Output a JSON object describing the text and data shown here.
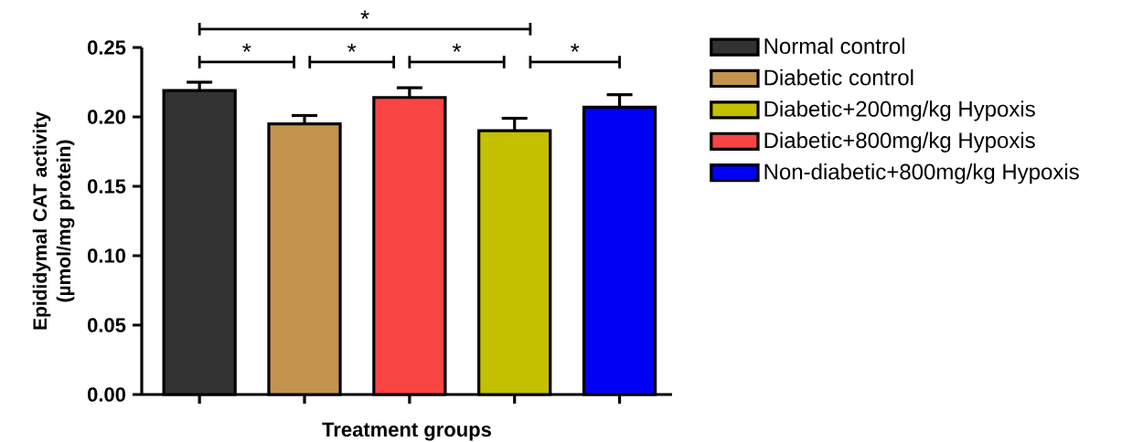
{
  "chart_data": {
    "type": "bar",
    "xlabel": "Treatment groups",
    "ylabel": "Epididymal CAT activity (µmol/mg protein)",
    "categories": [
      null,
      null,
      null,
      null,
      null
    ],
    "series": [
      {
        "name": "Normal control",
        "color": "#333333",
        "values": [
          0.219,
          null,
          null,
          null,
          null
        ],
        "errors": [
          0.006,
          null,
          null,
          null,
          null
        ]
      },
      {
        "name": "Diabetic control",
        "color": "#c4944f",
        "values": [
          null,
          0.195,
          null,
          null,
          null
        ],
        "errors": [
          null,
          0.006,
          null,
          null,
          null
        ]
      },
      {
        "name": "Diabetic+200mg/kg Hypoxis",
        "color": "#c4c000",
        "values": [
          null,
          null,
          null,
          0.19,
          null
        ],
        "errors": [
          null,
          null,
          null,
          0.009,
          null
        ]
      },
      {
        "name": "Diabetic+800mg/kg Hypoxis",
        "color": "#f94444",
        "values": [
          null,
          null,
          0.214,
          null,
          null
        ],
        "errors": [
          null,
          null,
          0.007,
          null,
          null
        ]
      },
      {
        "name": "Non-diabetic+800mg/kg Hypoxis",
        "color": "#0000f5",
        "values": [
          null,
          null,
          null,
          null,
          0.207
        ],
        "errors": [
          null,
          null,
          null,
          null,
          0.009
        ]
      }
    ],
    "ylim": [
      0,
      0.25
    ],
    "yticks": [
      {
        "value": 0,
        "label": "0.00"
      },
      {
        "value": 0.05,
        "label": "0.05"
      },
      {
        "value": 0.1,
        "label": "0.10"
      },
      {
        "value": 0.15,
        "label": "0.15"
      },
      {
        "value": 0.2,
        "label": "0.20"
      },
      {
        "value": 0.25,
        "label": "0.25"
      }
    ],
    "tick_labels": "y",
    "grid": false,
    "legend": "right",
    "annotations": [
      "*",
      "*",
      "*",
      "*",
      "*"
    ]
  }
}
